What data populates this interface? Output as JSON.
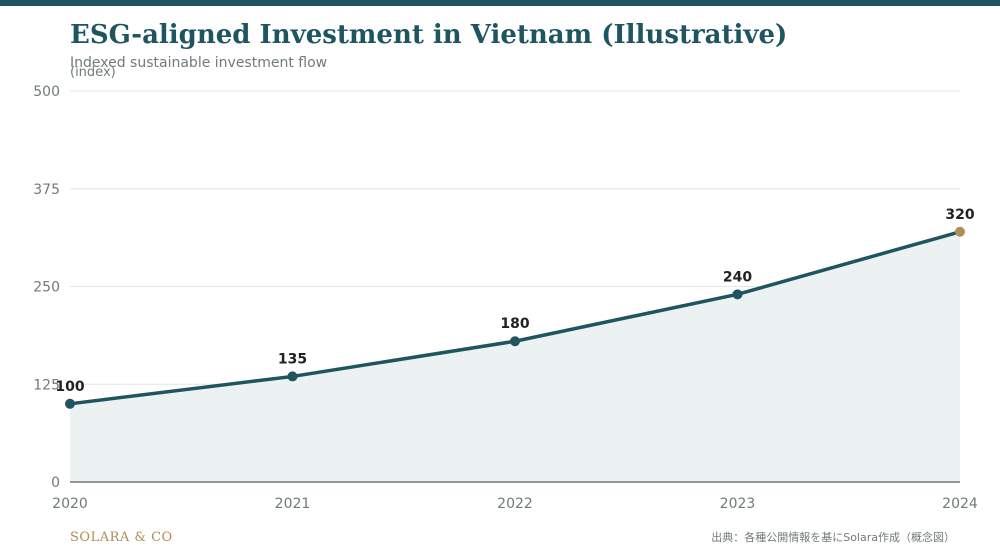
{
  "header": {
    "title": "ESG-aligned Investment in Vietnam (Illustrative)",
    "subtitle": "Indexed sustainable investment flow"
  },
  "footer": {
    "brand": "SOLARA & CO",
    "source": "出典：各種公開情報を基にSolara作成（概念図）"
  },
  "colors": {
    "accent": "#1f5560",
    "highlight": "#b08d57",
    "area_fill": "#ecf2f2",
    "grid": "#e3e6e6",
    "axis": "#6f7779",
    "text_muted": "#707a7c"
  },
  "chart_data": {
    "type": "area",
    "title": "ESG-aligned Investment in Vietnam (Illustrative)",
    "subtitle": "Indexed sustainable investment flow",
    "xlabel": "",
    "ylabel": "(index)",
    "x": [
      "2020",
      "2021",
      "2022",
      "2023",
      "2024"
    ],
    "values": [
      100,
      135,
      180,
      240,
      320
    ],
    "data_labels": [
      "100",
      "135",
      "180",
      "240",
      "320"
    ],
    "ylim": [
      0,
      500
    ],
    "yticks": [
      0,
      125,
      250,
      375,
      500
    ],
    "ytick_labels": [
      "0",
      "125",
      "250",
      "375",
      "500"
    ],
    "grid": true,
    "legend": "none",
    "highlight_last_point": true
  }
}
